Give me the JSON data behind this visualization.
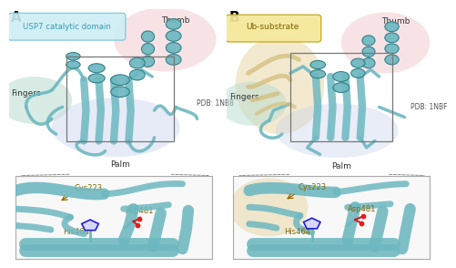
{
  "bg_color": "#ffffff",
  "protein_teal": "#6db8c0",
  "protein_dark_teal": "#2a7a85",
  "protein_light_teal": "#a8d8dc",
  "ub_wheat": "#e8d8a8",
  "ub_light": "#f0e8c0",
  "thumb_pink": "#f0c8cc",
  "fingers_green": "#b8ddd0",
  "palm_blue": "#c8d4ee",
  "panel_A": {
    "label": "A",
    "box_label": "USP7 catalytic domain",
    "box_facecolor": "#cdeef5",
    "box_edgecolor": "#7ec8d8",
    "box_textcolor": "#3a9ab0",
    "pdb": "PDB: 1NB8",
    "thumb": "Thumb",
    "fingers": "Fingers",
    "palm": "Palm",
    "cys": "Cys223",
    "his": "His464",
    "asp": "Asp481"
  },
  "panel_B": {
    "label": "B",
    "box_label": "Ub-substrate",
    "box_facecolor": "#f5e898",
    "box_edgecolor": "#c8a820",
    "box_textcolor": "#7a6000",
    "pdb": "PDB: 1NBF",
    "thumb": "Thumb",
    "fingers": "Fingers",
    "palm": "Palm",
    "cys": "Cys223",
    "his": "His464",
    "asp": "Asp481"
  }
}
